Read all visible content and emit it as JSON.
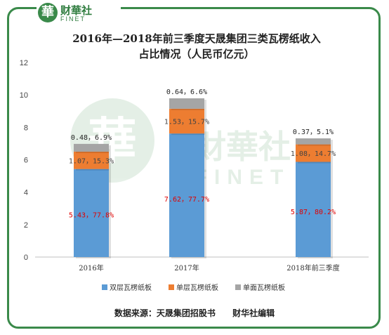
{
  "brand": {
    "mark": "華",
    "name": "财華社",
    "sub": "FINET"
  },
  "watermark": {
    "mark": "華",
    "name": "財華社",
    "sub": "FINET"
  },
  "title_line1": "2016年—2018年前三季度天晟集团三类瓦楞纸收入",
  "title_line2": "占比情况（人民币亿元）",
  "source": {
    "label": "数据来源：天晟集团招股书",
    "editor": "财华社编辑"
  },
  "chart_data": {
    "type": "bar",
    "stacked": true,
    "categories": [
      "2016年",
      "2017年",
      "2018年前三季度"
    ],
    "ylim": [
      0,
      12
    ],
    "yticks": [
      0,
      2,
      4,
      6,
      8,
      10,
      12
    ],
    "grid": false,
    "legend_position": "bottom",
    "series": [
      {
        "name": "双层瓦楞纸板",
        "color": "#5b9bd5",
        "values": [
          5.43,
          7.62,
          5.87
        ],
        "labels": [
          "5.43，77.8%",
          "7.62，77.7%",
          "5.87，80.2%"
        ],
        "label_color": "#e00000"
      },
      {
        "name": "单层瓦楞纸板",
        "color": "#ed7d31",
        "values": [
          1.07,
          1.53,
          1.08
        ],
        "labels": [
          "1.07，15.3%",
          "1.53，15.7%",
          "1.08，14.7%"
        ],
        "label_color": "#444444"
      },
      {
        "name": "单面瓦楞纸板",
        "color": "#a5a5a5",
        "values": [
          0.48,
          0.64,
          0.37
        ],
        "labels": [
          "0.48，6.9%",
          "0.64，6.6%",
          "0.37，5.1%"
        ],
        "label_color": "#222222"
      }
    ]
  }
}
